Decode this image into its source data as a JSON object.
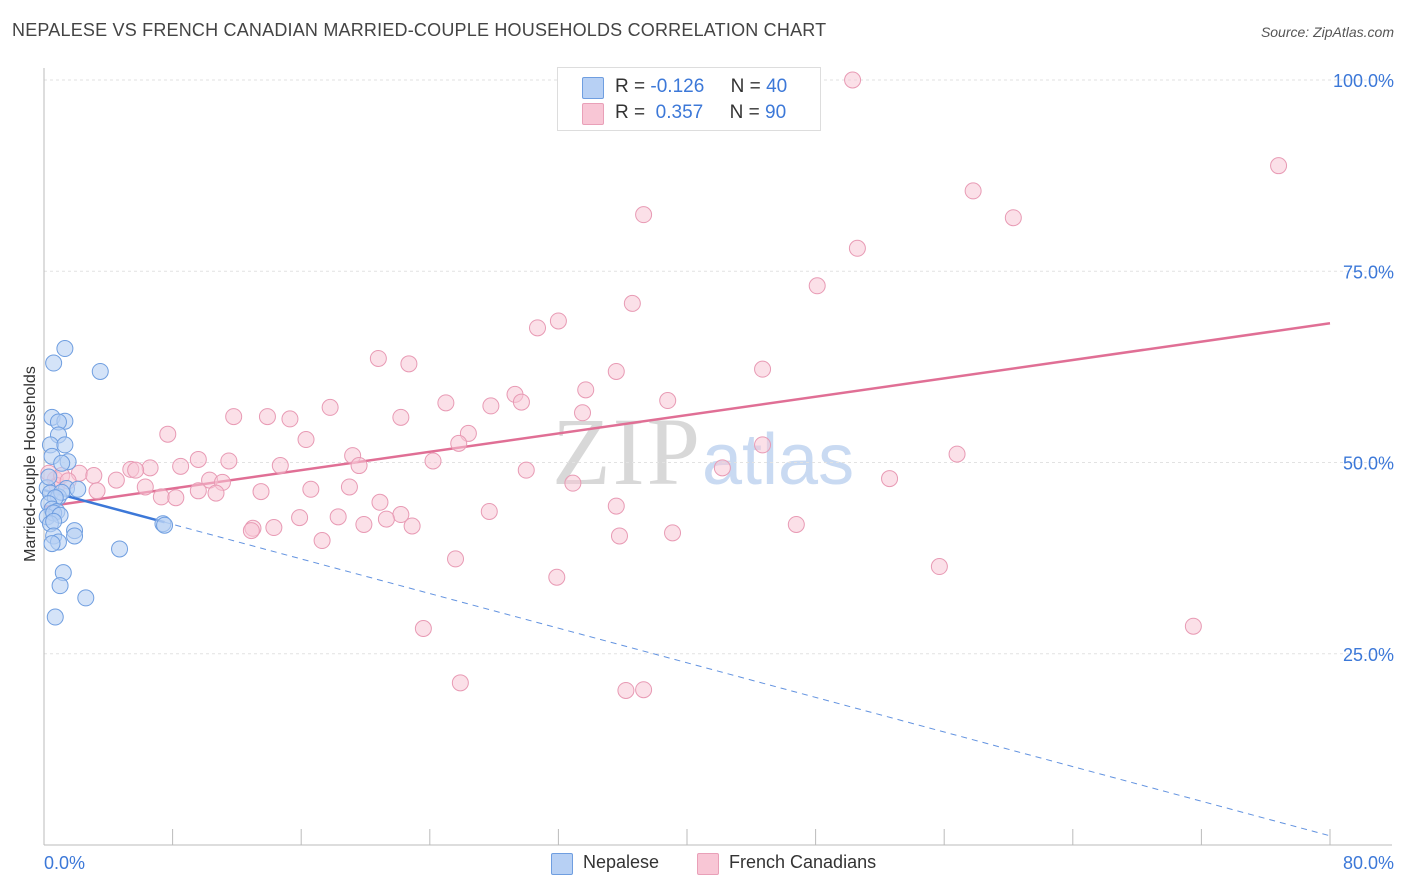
{
  "title": "NEPALESE VS FRENCH CANADIAN MARRIED-COUPLE HOUSEHOLDS CORRELATION CHART",
  "source": "Source: ZipAtlas.com",
  "watermark": {
    "part1": "ZIP",
    "part2": "atlas"
  },
  "legend": {
    "rows": [
      {
        "r_label": "R =",
        "r_value": "-0.126",
        "n_label": "N =",
        "n_value": "40"
      },
      {
        "r_label": "R =",
        "r_value": "0.357",
        "n_label": "N =",
        "n_value": "90"
      }
    ]
  },
  "bottom_legend": {
    "series1": "Nepalese",
    "series2": "French Canadians"
  },
  "colors": {
    "blue": "#3c78d8",
    "blue_fill": "#b7d0f4",
    "pink": "#e06f95",
    "pink_fill": "#f8c6d5",
    "axis_text": "#3c78d8",
    "grid": "#e2e2e2"
  },
  "chart_data": {
    "type": "scatter",
    "title": "NEPALESE VS FRENCH CANADIAN MARRIED-COUPLE HOUSEHOLDS CORRELATION CHART",
    "xlabel": "",
    "ylabel": "Married-couple Households",
    "xlim": [
      0,
      80
    ],
    "ylim": [
      0,
      103
    ],
    "x_tick_labels": [
      "0.0%",
      "80.0%"
    ],
    "y_tick_labels": [
      "25.0%",
      "50.0%",
      "75.0%",
      "100.0%"
    ],
    "y_ticks": [
      25,
      50,
      75,
      100
    ],
    "grid": true,
    "legend_position": "top-center",
    "series": [
      {
        "name": "Nepalese",
        "R": -0.126,
        "N": 40,
        "trend": {
          "x": [
            0,
            7.5
          ],
          "y": [
            46.4,
            42.2
          ]
        },
        "trend_extension": {
          "x": [
            7.5,
            80
          ],
          "y": [
            42.2,
            1.2
          ]
        },
        "points": [
          [
            0.6,
            63.0
          ],
          [
            1.3,
            64.9
          ],
          [
            3.5,
            61.9
          ],
          [
            0.5,
            55.9
          ],
          [
            1.3,
            55.4
          ],
          [
            0.9,
            55.3
          ],
          [
            0.9,
            53.6
          ],
          [
            0.4,
            52.3
          ],
          [
            1.3,
            52.3
          ],
          [
            0.5,
            50.8
          ],
          [
            1.5,
            50.1
          ],
          [
            1.1,
            49.9
          ],
          [
            0.2,
            46.7
          ],
          [
            1.4,
            46.6
          ],
          [
            0.4,
            46.0
          ],
          [
            0.9,
            45.5
          ],
          [
            1.1,
            46.1
          ],
          [
            0.7,
            45.4
          ],
          [
            0.3,
            44.6
          ],
          [
            0.5,
            43.9
          ],
          [
            0.8,
            43.6
          ],
          [
            0.2,
            42.9
          ],
          [
            0.6,
            43.4
          ],
          [
            1.0,
            43.1
          ],
          [
            0.4,
            42.0
          ],
          [
            0.6,
            42.3
          ],
          [
            1.9,
            41.1
          ],
          [
            1.9,
            40.4
          ],
          [
            0.6,
            40.4
          ],
          [
            0.9,
            39.6
          ],
          [
            0.5,
            39.4
          ],
          [
            7.4,
            42.0
          ],
          [
            7.5,
            41.8
          ],
          [
            4.7,
            38.7
          ],
          [
            1.2,
            35.6
          ],
          [
            1.0,
            33.9
          ],
          [
            2.6,
            32.3
          ],
          [
            0.7,
            29.8
          ],
          [
            0.3,
            48.1
          ],
          [
            2.1,
            46.5
          ]
        ]
      },
      {
        "name": "French Canadians",
        "R": 0.357,
        "N": 90,
        "trend": {
          "x": [
            0,
            80
          ],
          "y": [
            44.2,
            68.2
          ]
        },
        "points": [
          [
            47.8,
            100.2
          ],
          [
            50.3,
            100.0
          ],
          [
            76.8,
            88.8
          ],
          [
            57.8,
            85.5
          ],
          [
            60.3,
            82.0
          ],
          [
            37.3,
            82.4
          ],
          [
            50.6,
            78.0
          ],
          [
            48.1,
            73.1
          ],
          [
            36.6,
            70.8
          ],
          [
            32.0,
            68.5
          ],
          [
            30.7,
            67.6
          ],
          [
            20.8,
            63.6
          ],
          [
            22.7,
            62.9
          ],
          [
            35.6,
            61.9
          ],
          [
            44.7,
            62.2
          ],
          [
            33.7,
            59.5
          ],
          [
            29.3,
            58.9
          ],
          [
            25.0,
            57.8
          ],
          [
            29.7,
            57.9
          ],
          [
            27.8,
            57.4
          ],
          [
            38.8,
            58.1
          ],
          [
            17.8,
            57.2
          ],
          [
            33.5,
            56.5
          ],
          [
            22.2,
            55.9
          ],
          [
            11.8,
            56.0
          ],
          [
            13.9,
            56.0
          ],
          [
            15.3,
            55.7
          ],
          [
            7.7,
            53.7
          ],
          [
            26.4,
            53.8
          ],
          [
            16.3,
            53.0
          ],
          [
            25.8,
            52.5
          ],
          [
            44.7,
            52.3
          ],
          [
            19.2,
            50.9
          ],
          [
            9.6,
            50.4
          ],
          [
            11.5,
            50.2
          ],
          [
            56.8,
            51.1
          ],
          [
            24.2,
            50.2
          ],
          [
            19.6,
            49.6
          ],
          [
            8.5,
            49.5
          ],
          [
            5.4,
            49.1
          ],
          [
            6.6,
            49.3
          ],
          [
            14.7,
            49.6
          ],
          [
            30.0,
            49.0
          ],
          [
            42.2,
            49.3
          ],
          [
            5.7,
            49.0
          ],
          [
            0.7,
            47.8
          ],
          [
            2.2,
            48.6
          ],
          [
            3.1,
            48.3
          ],
          [
            4.5,
            47.7
          ],
          [
            10.3,
            47.7
          ],
          [
            11.1,
            47.4
          ],
          [
            52.6,
            47.9
          ],
          [
            6.3,
            46.8
          ],
          [
            0.8,
            47.0
          ],
          [
            3.3,
            46.3
          ],
          [
            7.3,
            45.5
          ],
          [
            8.2,
            45.4
          ],
          [
            13.5,
            46.2
          ],
          [
            16.6,
            46.5
          ],
          [
            19.0,
            46.8
          ],
          [
            32.9,
            47.3
          ],
          [
            9.6,
            46.3
          ],
          [
            10.7,
            46.0
          ],
          [
            20.9,
            44.8
          ],
          [
            22.2,
            43.2
          ],
          [
            35.6,
            44.3
          ],
          [
            15.9,
            42.8
          ],
          [
            18.3,
            42.9
          ],
          [
            27.7,
            43.6
          ],
          [
            19.9,
            41.9
          ],
          [
            21.3,
            42.6
          ],
          [
            22.9,
            41.7
          ],
          [
            46.8,
            41.9
          ],
          [
            14.3,
            41.5
          ],
          [
            13.0,
            41.4
          ],
          [
            12.9,
            41.1
          ],
          [
            17.3,
            39.8
          ],
          [
            39.1,
            40.8
          ],
          [
            35.8,
            40.4
          ],
          [
            25.6,
            37.4
          ],
          [
            31.9,
            35.0
          ],
          [
            55.7,
            36.4
          ],
          [
            71.5,
            28.6
          ],
          [
            23.6,
            28.3
          ],
          [
            25.9,
            21.2
          ],
          [
            36.2,
            20.2
          ],
          [
            37.3,
            20.3
          ],
          [
            0.3,
            48.6
          ],
          [
            1.1,
            48.3
          ],
          [
            1.5,
            47.6
          ]
        ]
      }
    ]
  }
}
